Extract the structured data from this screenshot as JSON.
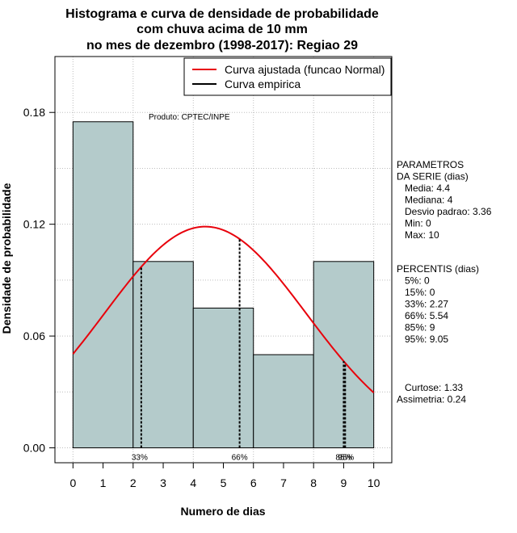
{
  "chart_data": {
    "type": "bar",
    "title_lines": [
      "Histograma e curva de densidade de probabilidade",
      "com chuva acima de 10 mm",
      "no mes de dezembro (1998-2017): Regiao 29"
    ],
    "xlabel": "Numero de dias",
    "ylabel": "Densidade de probabilidade",
    "xlim": [
      -0.6,
      10.6
    ],
    "ylim": [
      -0.008,
      0.21
    ],
    "xticks": [
      "0",
      "1",
      "2",
      "3",
      "4",
      "5",
      "6",
      "7",
      "8",
      "9",
      "10"
    ],
    "yticks": [
      "0.00",
      "0.06",
      "0.12",
      "0.18"
    ],
    "bins": [
      {
        "from": 0,
        "to": 2,
        "value": 0.175
      },
      {
        "from": 2,
        "to": 4,
        "value": 0.1
      },
      {
        "from": 4,
        "to": 6,
        "value": 0.075
      },
      {
        "from": 6,
        "to": 8,
        "value": 0.05
      },
      {
        "from": 8,
        "to": 10,
        "value": 0.1
      }
    ],
    "normal_fit": {
      "mean": 4.4,
      "sd": 3.36,
      "x_from": 0,
      "x_to": 10
    },
    "percentile_lines": [
      {
        "label": "33%",
        "x": 2.27
      },
      {
        "label": "66%",
        "x": 5.54
      },
      {
        "label": "85%",
        "x": 9
      },
      {
        "label": "95%",
        "x": 9.05
      }
    ],
    "legend": [
      {
        "label": "Curva ajustada (funcao Normal)",
        "color": "#e8000b"
      },
      {
        "label": "Curva empirica",
        "color": "#000000"
      }
    ],
    "source_note": "Produto: CPTEC/INPE",
    "params_block": [
      "PARAMETROS",
      "DA SERIE (dias)",
      "   Media: 4.4",
      "   Mediana: 4",
      "   Desvio padrao: 3.36",
      "   Min: 0",
      "   Max: 10"
    ],
    "percentis_block": [
      "PERCENTIS (dias)",
      "   5%: 0",
      "   15%: 0",
      "   33%: 2.27",
      "   66%: 5.54",
      "   85%: 9",
      "   95%: 9.05"
    ],
    "stats_block": [
      "   Curtose: 1.33",
      "Assimetria: 0.24"
    ],
    "colors": {
      "bar_fill": "#b4cbcb",
      "curve": "#e8000b",
      "grid": "#bdbdbd"
    }
  }
}
